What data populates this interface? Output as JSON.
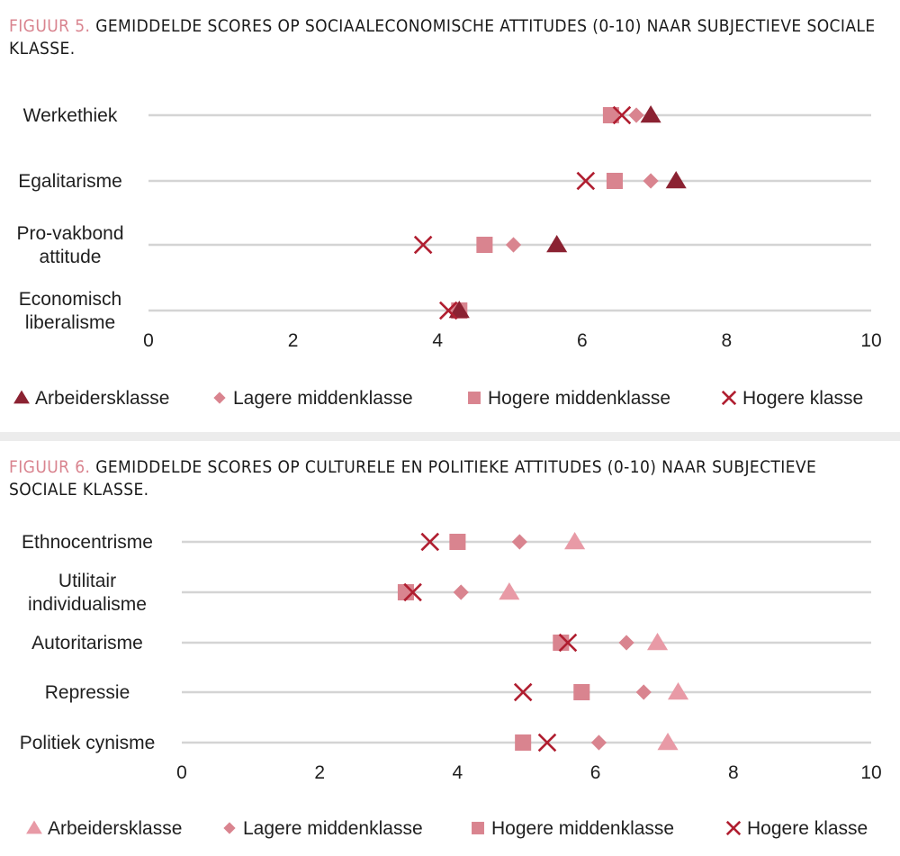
{
  "figures": [
    {
      "number": "FIGUUR 5.",
      "title": "GEMIDDELDE SCORES OP SOCIAALECONOMISCHE ATTITUDES (0-10) NAAR SUBJECTIEVE SOCIALE KLASSE."
    },
    {
      "number": "FIGUUR 6.",
      "title": "GEMIDDELDE SCORES OP CULTURELE EN POLITIEKE ATTITUDES (0-10) NAAR SUBJECTIEVE SOCIALE KLASSE."
    }
  ],
  "chart_data": [
    {
      "type": "scatter",
      "title": "GEMIDDELDE SCORES OP SOCIAALECONOMISCHE ATTITUDES (0-10) NAAR SUBJECTIEVE SOCIALE KLASSE.",
      "categories": [
        [
          "Werkethiek"
        ],
        [
          "Egalitarisme"
        ],
        [
          "Pro-vakbond",
          "attitude"
        ],
        [
          "Economisch",
          "liberalisme"
        ]
      ],
      "xlim": [
        0,
        10
      ],
      "xticks": [
        "0",
        "2",
        "4",
        "6",
        "8",
        "10"
      ],
      "grid": true,
      "legend_placement": "bottom",
      "series": [
        {
          "name": "Arbeidersklasse",
          "marker": "triangle",
          "color": "#8b2232",
          "values": [
            6.95,
            7.3,
            5.65,
            4.3
          ]
        },
        {
          "name": "Lagere middenklasse",
          "marker": "diamond",
          "color": "#d9848f",
          "values": [
            6.75,
            6.95,
            5.05,
            4.25
          ]
        },
        {
          "name": "Hogere middenklasse",
          "marker": "square",
          "color": "#d9848f",
          "values": [
            6.4,
            6.45,
            4.65,
            4.3
          ]
        },
        {
          "name": "Hogere klasse",
          "marker": "x",
          "color": "#b01e30",
          "values": [
            6.55,
            6.05,
            3.8,
            4.15
          ]
        }
      ]
    },
    {
      "type": "scatter",
      "title": "GEMIDDELDE SCORES OP CULTURELE EN POLITIEKE ATTITUDES (0-10) NAAR SUBJECTIEVE SOCIALE KLASSE.",
      "categories": [
        [
          "Ethnocentrisme"
        ],
        [
          "Utilitair",
          "individualisme"
        ],
        [
          "Autoritarisme"
        ],
        [
          "Repressie"
        ],
        [
          "Politiek cynisme"
        ]
      ],
      "xlim": [
        0,
        10
      ],
      "xticks": [
        "0",
        "2",
        "4",
        "6",
        "8",
        "10"
      ],
      "grid": true,
      "legend_placement": "bottom",
      "series": [
        {
          "name": "Arbeidersklasse",
          "marker": "triangle",
          "color": "#e89aa6",
          "values": [
            5.7,
            4.75,
            6.9,
            7.2,
            7.05
          ]
        },
        {
          "name": "Lagere middenklasse",
          "marker": "diamond",
          "color": "#d9848f",
          "values": [
            4.9,
            4.05,
            6.45,
            6.7,
            6.05
          ]
        },
        {
          "name": "Hogere middenklasse",
          "marker": "square",
          "color": "#d9848f",
          "values": [
            4.0,
            3.25,
            5.5,
            5.8,
            4.95
          ]
        },
        {
          "name": "Hogere klasse",
          "marker": "x",
          "color": "#b01e30",
          "values": [
            3.6,
            3.35,
            5.6,
            4.95,
            5.3
          ]
        }
      ]
    }
  ]
}
